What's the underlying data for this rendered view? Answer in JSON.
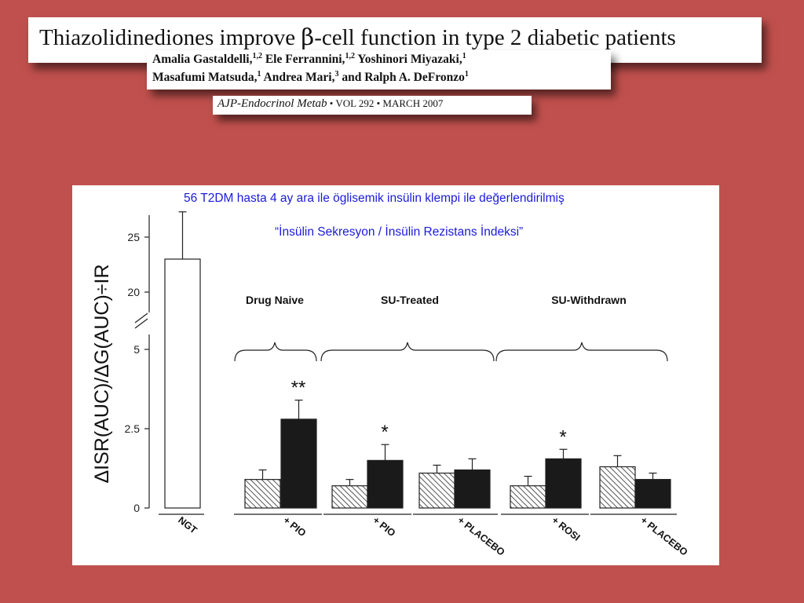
{
  "paper": {
    "title_part1": "Thiazolidinediones improve ",
    "title_beta": "β",
    "title_part2": "-cell function in type 2 diabetic patients",
    "authors_line1": "Amalia Gastaldelli,",
    "authors_line1_sup1": "1,2",
    "authors_line1_b": " Ele Ferrannini,",
    "authors_line1_sup2": "1,2",
    "authors_line1_c": " Yoshinori Miyazaki,",
    "authors_line1_sup3": "1",
    "authors_line2": "Masafumi Matsuda,",
    "authors_line2_sup1": "1",
    "authors_line2_b": " Andrea Mari,",
    "authors_line2_sup2": "3",
    "authors_line2_c": " and Ralph A. DeFronzo",
    "authors_line2_sup3": "1",
    "journal_name": "AJP-Endocrinol Metab",
    "journal_details": " • VOL 292 • MARCH 2007"
  },
  "annotation": {
    "line1": "56 T2DM hasta 4 ay ara ile öglisemik insülin klempi ile değerlendirilmiş",
    "line2": "“İnsülin Sekresyon / İnsülin Rezistans İndeksi”",
    "color": "#1a1adc"
  },
  "chart_data": {
    "type": "bar",
    "ylabel": "ΔISR(AUC)/ΔG(AUC)÷IR",
    "y_ticks_lower": [
      "0",
      "2.5",
      "5"
    ],
    "y_ticks_upper": [
      "20",
      "25"
    ],
    "lower_ylim": [
      0,
      5
    ],
    "upper_ylim": [
      20,
      25
    ],
    "axis_break": true,
    "x_labels": [
      "NGT",
      "+ PIO",
      "+ PIO",
      "+ PLACEBO",
      "+ ROSI",
      "+ PLACEBO"
    ],
    "groups": [
      {
        "label": "",
        "bars": [
          {
            "kind": "white",
            "value": 23,
            "error": 4.3
          }
        ]
      },
      {
        "label": "Drug Naive",
        "bars": [
          {
            "kind": "hatched",
            "value": 0.9,
            "error": 0.3
          },
          {
            "kind": "black",
            "value": 2.8,
            "error": 0.6
          }
        ],
        "significance": "**"
      },
      {
        "label": "SU-Treated",
        "bars": [
          {
            "kind": "hatched",
            "value": 0.7,
            "error": 0.2
          },
          {
            "kind": "black",
            "value": 1.5,
            "error": 0.5
          }
        ],
        "significance": "*"
      },
      {
        "label": "",
        "bars": [
          {
            "kind": "hatched",
            "value": 1.1,
            "error": 0.25
          },
          {
            "kind": "black",
            "value": 1.2,
            "error": 0.35
          }
        ]
      },
      {
        "label": "SU-Withdrawn",
        "bars": [
          {
            "kind": "hatched",
            "value": 0.7,
            "error": 0.3
          },
          {
            "kind": "black",
            "value": 1.55,
            "error": 0.3
          }
        ],
        "significance": "*"
      },
      {
        "label": "",
        "bars": [
          {
            "kind": "hatched",
            "value": 1.3,
            "error": 0.35
          },
          {
            "kind": "black",
            "value": 0.9,
            "error": 0.2
          }
        ]
      }
    ],
    "bracket_labels": [
      "Drug Naive",
      "SU-Treated",
      "SU-Withdrawn"
    ],
    "colors": {
      "black": "#1a1a1a",
      "white": "#ffffff",
      "hatch": "#555555"
    }
  }
}
